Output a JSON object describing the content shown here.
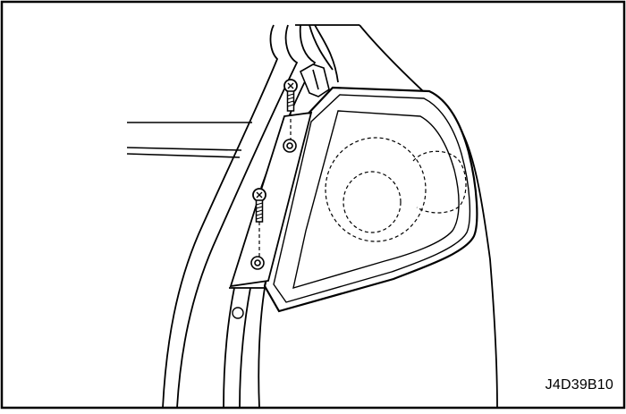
{
  "figure": {
    "code": "J4D39B10",
    "colors": {
      "line": "#000000",
      "paper": "#ffffff",
      "lens_fill": "#ffffff"
    },
    "icon_names": [
      "screw-icon",
      "bolt-hole-icon",
      "lamp-outline-icon"
    ]
  }
}
